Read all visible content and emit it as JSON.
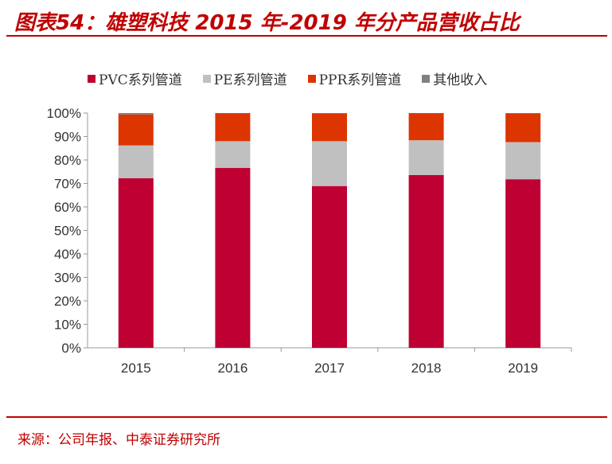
{
  "header": {
    "title": "图表54：雄塑科技 2015 年-2019 年分产品营收占比"
  },
  "footer": {
    "source": "来源：公司年报、中泰证券研究所"
  },
  "chart_data": {
    "type": "bar",
    "stacked": true,
    "categories": [
      "2015",
      "2016",
      "2017",
      "2018",
      "2019"
    ],
    "series": [
      {
        "name": "PVC系列管道",
        "color": "#be0032",
        "values": [
          72.2,
          76.6,
          68.9,
          73.6,
          71.8
        ]
      },
      {
        "name": "PE系列管道",
        "color": "#c0c0c0",
        "values": [
          14.0,
          11.4,
          19.1,
          14.8,
          15.8
        ]
      },
      {
        "name": "PPR系列管道",
        "color": "#dc3500",
        "values": [
          13.2,
          11.9,
          11.8,
          11.5,
          12.2
        ]
      },
      {
        "name": "其他收入",
        "color": "#808080",
        "values": [
          0.6,
          0.1,
          0.2,
          0.1,
          0.2
        ]
      }
    ],
    "ylim": [
      0,
      100
    ],
    "yticks": [
      "0%",
      "10%",
      "20%",
      "30%",
      "40%",
      "50%",
      "60%",
      "70%",
      "80%",
      "90%",
      "100%"
    ],
    "legend": "top",
    "grid": false
  }
}
